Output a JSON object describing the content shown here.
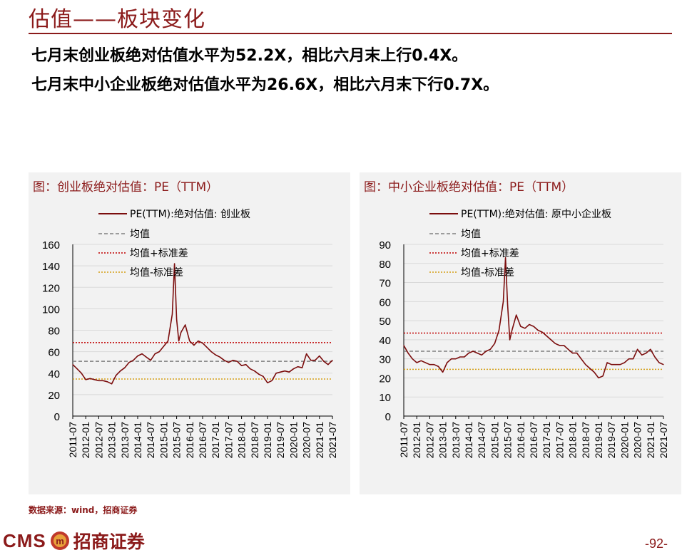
{
  "page": {
    "title": "估值——板块变化",
    "summary_lines": [
      "七月末创业板绝对估值水平为52.2X，相比六月末上行0.4X。",
      "七月末中小企业板绝对估值水平为26.6X，相比六月末下行0.7X。"
    ],
    "source": "数据来源：wind，招商证券",
    "logo_text": "CMS",
    "logo_cn": "招商证券",
    "page_number": "-92-"
  },
  "colors": {
    "brand": "#8b1a1a",
    "series": "#7b0d0d",
    "mean": "#7f7f7f",
    "plus_std": "#c00000",
    "minus_std": "#d4a017",
    "panel_bg": "#f2f2f2",
    "grid": "#d9d9d9"
  },
  "chart_data": [
    {
      "type": "line",
      "panel_title": "图：创业板绝对估值：PE（TTM）",
      "x_ticks": [
        "2011-07",
        "2012-01",
        "2012-07",
        "2013-01",
        "2013-07",
        "2014-01",
        "2014-07",
        "2015-01",
        "2015-07",
        "2016-01",
        "2016-07",
        "2017-01",
        "2017-07",
        "2018-01",
        "2018-07",
        "2019-01",
        "2019-07",
        "2020-01",
        "2020-07",
        "2021-01",
        "2021-07"
      ],
      "y_ticks": [
        0,
        20,
        40,
        60,
        80,
        100,
        120,
        140,
        160
      ],
      "ylim": [
        0,
        160
      ],
      "legend": [
        "PE(TTM):绝对估值: 创业板",
        "均值",
        "均值+标准差",
        "均值-标准差"
      ],
      "legend_position": "top-left",
      "grid": true,
      "mean": 51,
      "mean_plus_std": 68.5,
      "mean_minus_std": 34.5,
      "series": [
        {
          "name": "PE(TTM):绝对估值: 创业板",
          "x": [
            "2011-07",
            "2011-09",
            "2011-11",
            "2012-01",
            "2012-03",
            "2012-05",
            "2012-07",
            "2012-09",
            "2012-11",
            "2013-01",
            "2013-03",
            "2013-05",
            "2013-07",
            "2013-09",
            "2013-11",
            "2014-01",
            "2014-03",
            "2014-05",
            "2014-07",
            "2014-09",
            "2014-11",
            "2015-01",
            "2015-03",
            "2015-05",
            "2015-06",
            "2015-07",
            "2015-08",
            "2015-09",
            "2015-11",
            "2016-01",
            "2016-03",
            "2016-05",
            "2016-07",
            "2016-09",
            "2016-11",
            "2017-01",
            "2017-03",
            "2017-05",
            "2017-07",
            "2017-09",
            "2017-11",
            "2018-01",
            "2018-03",
            "2018-05",
            "2018-07",
            "2018-09",
            "2018-11",
            "2019-01",
            "2019-03",
            "2019-05",
            "2019-07",
            "2019-09",
            "2019-11",
            "2020-01",
            "2020-03",
            "2020-05",
            "2020-07",
            "2020-09",
            "2020-11",
            "2021-01",
            "2021-03",
            "2021-05",
            "2021-07"
          ],
          "values": [
            48,
            44,
            40,
            34,
            35,
            34,
            33,
            33,
            32,
            30,
            38,
            42,
            45,
            50,
            52,
            56,
            58,
            55,
            52,
            58,
            60,
            65,
            70,
            95,
            142,
            90,
            70,
            78,
            85,
            70,
            66,
            70,
            68,
            64,
            60,
            57,
            55,
            52,
            50,
            52,
            51,
            47,
            48,
            44,
            42,
            39,
            37,
            31,
            33,
            40,
            41,
            42,
            41,
            44,
            46,
            45,
            58,
            52,
            52,
            56,
            51,
            48,
            52
          ]
        }
      ]
    },
    {
      "type": "line",
      "panel_title": "图：中小企业板绝对估值：PE（TTM）",
      "x_ticks": [
        "2011-07",
        "2012-01",
        "2012-07",
        "2013-01",
        "2013-07",
        "2014-01",
        "2014-07",
        "2015-01",
        "2015-07",
        "2016-01",
        "2016-07",
        "2017-01",
        "2017-07",
        "2018-01",
        "2018-07",
        "2019-01",
        "2019-07",
        "2020-01",
        "2020-07",
        "2021-01",
        "2021-07"
      ],
      "y_ticks": [
        0,
        10,
        20,
        30,
        40,
        50,
        60,
        70,
        80,
        90
      ],
      "ylim": [
        0,
        90
      ],
      "legend": [
        "PE(TTM):绝对估值: 原中小企业板",
        "均值",
        "均值+标准差",
        "均值-标准差"
      ],
      "legend_position": "top-left",
      "grid": true,
      "mean": 34,
      "mean_plus_std": 43.5,
      "mean_minus_std": 24.5,
      "series": [
        {
          "name": "PE(TTM):绝对估值: 原中小企业板",
          "x": [
            "2011-07",
            "2011-09",
            "2011-11",
            "2012-01",
            "2012-03",
            "2012-05",
            "2012-07",
            "2012-09",
            "2012-11",
            "2013-01",
            "2013-03",
            "2013-05",
            "2013-07",
            "2013-09",
            "2013-11",
            "2014-01",
            "2014-03",
            "2014-05",
            "2014-07",
            "2014-09",
            "2014-11",
            "2015-01",
            "2015-03",
            "2015-05",
            "2015-06",
            "2015-07",
            "2015-08",
            "2015-09",
            "2015-11",
            "2016-01",
            "2016-03",
            "2016-05",
            "2016-07",
            "2016-09",
            "2016-11",
            "2017-01",
            "2017-03",
            "2017-05",
            "2017-07",
            "2017-09",
            "2017-11",
            "2018-01",
            "2018-03",
            "2018-05",
            "2018-07",
            "2018-09",
            "2018-11",
            "2019-01",
            "2019-03",
            "2019-05",
            "2019-07",
            "2019-09",
            "2019-11",
            "2020-01",
            "2020-03",
            "2020-05",
            "2020-07",
            "2020-09",
            "2020-11",
            "2021-01",
            "2021-03",
            "2021-05",
            "2021-07"
          ],
          "values": [
            37,
            33,
            30,
            28,
            29,
            28,
            27,
            27,
            26,
            23,
            28,
            30,
            30,
            31,
            31,
            33,
            34,
            33,
            32,
            34,
            35,
            38,
            45,
            60,
            83,
            58,
            40,
            45,
            53,
            47,
            46,
            48,
            47,
            45,
            44,
            42,
            40,
            38,
            37,
            37,
            35,
            33,
            33,
            30,
            27,
            25,
            23,
            20,
            21,
            28,
            27,
            27,
            27,
            28,
            30,
            30,
            35,
            32,
            33,
            35,
            31,
            28,
            27
          ]
        }
      ]
    }
  ]
}
